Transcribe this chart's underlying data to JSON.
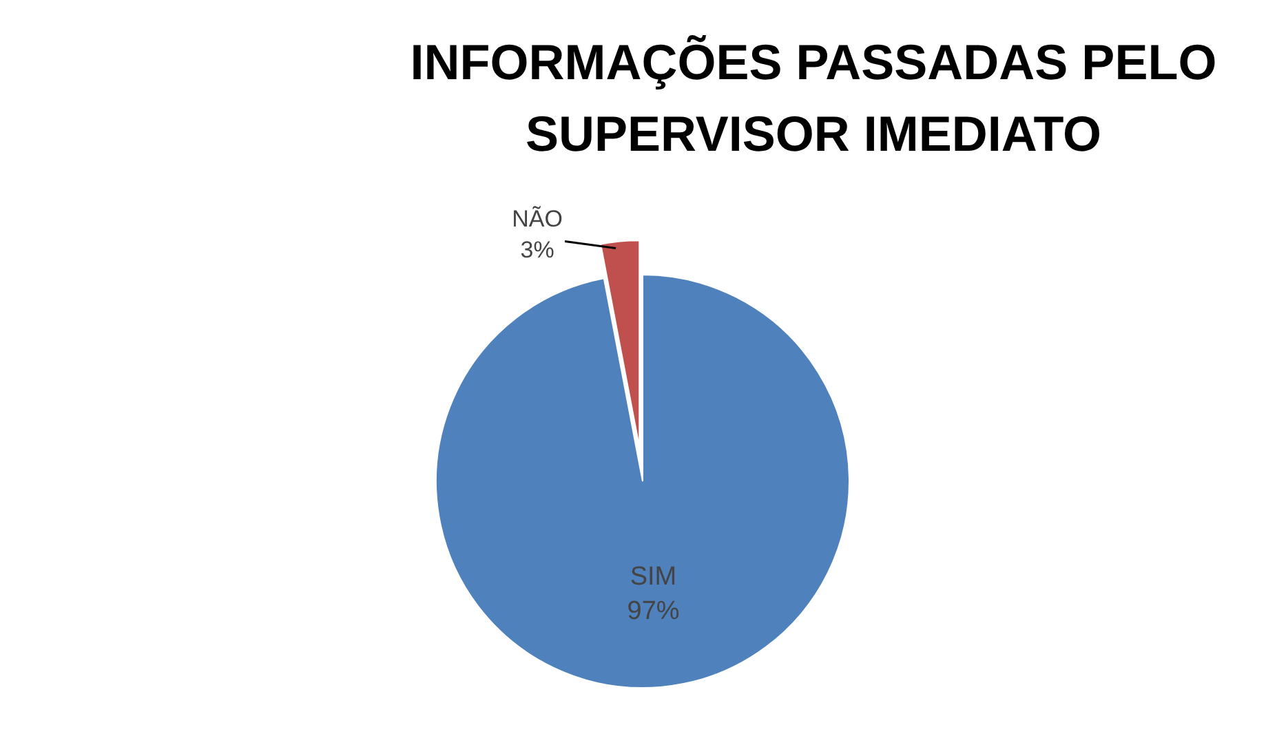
{
  "chart_data": {
    "type": "pie",
    "title": "INFORMAÇÕES PASSADAS PELO\nSUPERVISOR IMEDIATO",
    "categories": [
      "SIM",
      "NÃO"
    ],
    "values": [
      97,
      3
    ],
    "colors": [
      "#4f81bd",
      "#c0504d"
    ],
    "value_labels": [
      "97%",
      "3%"
    ]
  }
}
